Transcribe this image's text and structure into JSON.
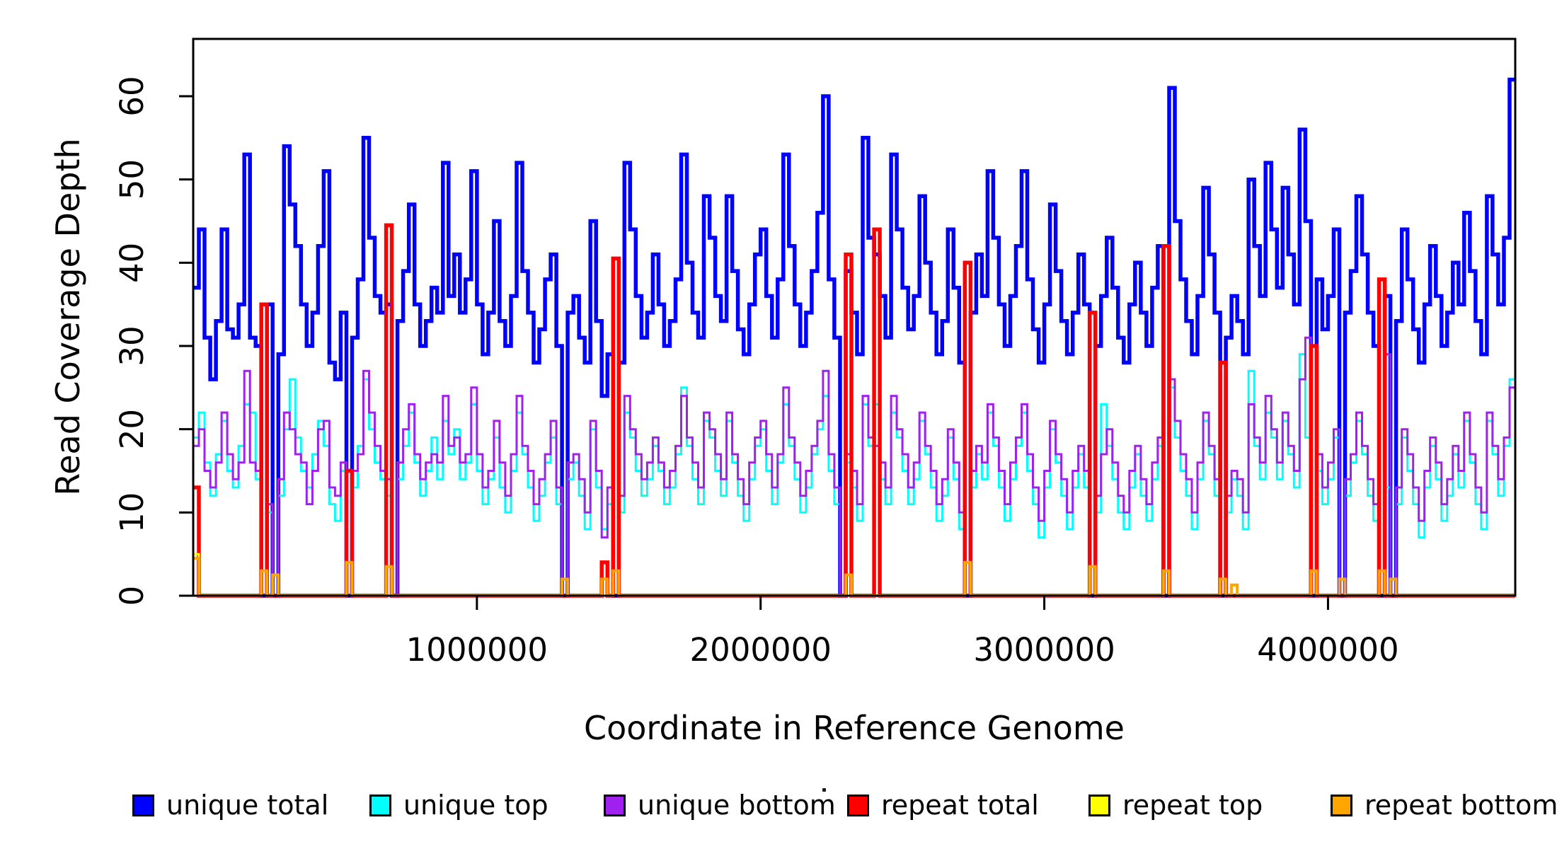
{
  "chart_data": {
    "type": "line",
    "subtype": "step-coverage",
    "title": "",
    "xlabel": "Coordinate in Reference Genome",
    "ylabel": "Read Coverage Depth",
    "xlim": [
      0,
      4660000
    ],
    "ylim": [
      0,
      67
    ],
    "x_ticks": [
      1000000,
      2000000,
      3000000,
      4000000
    ],
    "x_tick_labels": [
      "1000000",
      "2000000",
      "3000000",
      "4000000"
    ],
    "y_ticks": [
      0,
      10,
      20,
      30,
      40,
      50,
      60
    ],
    "y_tick_labels": [
      "0",
      "10",
      "20",
      "30",
      "40",
      "50",
      "60"
    ],
    "grid": false,
    "legend_position": "bottom",
    "window_bp": 20000,
    "series": [
      {
        "name": "unique total",
        "color": "#0000ff",
        "stroke_width": 5.5,
        "values": [
          37,
          44,
          31,
          26,
          33,
          44,
          32,
          31,
          35,
          53,
          31,
          30,
          0,
          35,
          0,
          29,
          54,
          47,
          42,
          35,
          30,
          34,
          42,
          51,
          28,
          26,
          34,
          0,
          31,
          38,
          55,
          43,
          36,
          34,
          35,
          0,
          33,
          39,
          47,
          35,
          30,
          33,
          37,
          34,
          52,
          36,
          41,
          34,
          38,
          51,
          35,
          29,
          34,
          45,
          33,
          30,
          36,
          52,
          39,
          34,
          28,
          32,
          38,
          41,
          30,
          0,
          34,
          36,
          31,
          28,
          45,
          33,
          24,
          29,
          0,
          28,
          52,
          44,
          36,
          31,
          34,
          41,
          35,
          30,
          33,
          38,
          53,
          40,
          34,
          31,
          48,
          43,
          36,
          33,
          48,
          39,
          32,
          29,
          35,
          41,
          44,
          36,
          31,
          38,
          53,
          42,
          35,
          30,
          34,
          39,
          46,
          60,
          38,
          31,
          0,
          39,
          34,
          29,
          55,
          43,
          41,
          36,
          31,
          53,
          44,
          37,
          32,
          36,
          48,
          40,
          34,
          29,
          33,
          44,
          37,
          28,
          0,
          34,
          41,
          36,
          51,
          43,
          35,
          30,
          36,
          42,
          51,
          38,
          32,
          28,
          35,
          47,
          39,
          33,
          29,
          34,
          41,
          35,
          0,
          30,
          36,
          43,
          37,
          31,
          28,
          35,
          40,
          34,
          30,
          37,
          42,
          0,
          61,
          45,
          38,
          33,
          29,
          36,
          49,
          41,
          34,
          0,
          31,
          36,
          33,
          29,
          50,
          42,
          36,
          52,
          44,
          37,
          49,
          41,
          35,
          56,
          45,
          0,
          38,
          32,
          36,
          44,
          0,
          34,
          39,
          48,
          41,
          34,
          30,
          0,
          36,
          0,
          33,
          44,
          38,
          32,
          28,
          35,
          42,
          36,
          30,
          34,
          40,
          35,
          46,
          39,
          33,
          29,
          48,
          41,
          35,
          43,
          62
        ]
      },
      {
        "name": "unique top",
        "color": "#00ffff",
        "stroke_width": 3,
        "values": [
          19,
          22,
          16,
          12,
          17,
          21,
          15,
          13,
          18,
          23,
          22,
          14,
          0,
          10,
          0,
          12,
          20,
          26,
          19,
          15,
          13,
          17,
          21,
          18,
          11,
          9,
          15,
          0,
          13,
          18,
          26,
          20,
          16,
          14,
          12,
          0,
          14,
          18,
          22,
          16,
          12,
          15,
          19,
          14,
          21,
          17,
          20,
          14,
          16,
          23,
          15,
          11,
          14,
          19,
          13,
          10,
          15,
          22,
          17,
          13,
          9,
          12,
          16,
          19,
          11,
          0,
          14,
          16,
          12,
          8,
          20,
          13,
          8,
          11,
          0,
          10,
          22,
          19,
          15,
          12,
          14,
          18,
          15,
          11,
          13,
          17,
          25,
          18,
          14,
          11,
          21,
          19,
          15,
          12,
          21,
          16,
          12,
          9,
          14,
          18,
          20,
          15,
          11,
          16,
          23,
          18,
          14,
          10,
          13,
          17,
          20,
          24,
          15,
          11,
          0,
          16,
          13,
          9,
          23,
          18,
          23,
          14,
          11,
          22,
          19,
          15,
          11,
          14,
          21,
          17,
          13,
          9,
          12,
          19,
          14,
          8,
          0,
          13,
          17,
          14,
          22,
          18,
          13,
          9,
          14,
          18,
          22,
          15,
          11,
          7,
          13,
          20,
          16,
          12,
          8,
          13,
          17,
          13,
          0,
          10,
          23,
          18,
          14,
          10,
          8,
          13,
          17,
          12,
          9,
          14,
          18,
          0,
          25,
          19,
          15,
          12,
          8,
          14,
          21,
          17,
          12,
          0,
          10,
          14,
          12,
          8,
          27,
          18,
          14,
          22,
          19,
          14,
          21,
          17,
          13,
          29,
          19,
          0,
          15,
          11,
          14,
          19,
          0,
          12,
          16,
          21,
          17,
          12,
          9,
          0,
          13,
          0,
          11,
          19,
          15,
          11,
          7,
          13,
          18,
          14,
          9,
          12,
          17,
          13,
          21,
          16,
          11,
          8,
          21,
          17,
          12,
          18,
          26
        ]
      },
      {
        "name": "unique bottom",
        "color": "#a020f0",
        "stroke_width": 3,
        "values": [
          18,
          20,
          15,
          13,
          16,
          22,
          17,
          14,
          16,
          27,
          16,
          15,
          0,
          11,
          0,
          14,
          22,
          20,
          17,
          16,
          11,
          15,
          20,
          21,
          13,
          12,
          16,
          0,
          15,
          17,
          27,
          22,
          18,
          15,
          14,
          0,
          16,
          20,
          23,
          17,
          14,
          16,
          17,
          16,
          24,
          18,
          19,
          16,
          17,
          25,
          17,
          13,
          15,
          21,
          16,
          12,
          17,
          24,
          18,
          15,
          11,
          14,
          17,
          21,
          13,
          0,
          16,
          17,
          14,
          10,
          21,
          15,
          7,
          13,
          0,
          12,
          24,
          20,
          17,
          14,
          16,
          19,
          16,
          13,
          15,
          18,
          24,
          19,
          16,
          13,
          22,
          20,
          17,
          14,
          22,
          17,
          14,
          11,
          16,
          19,
          21,
          17,
          13,
          17,
          25,
          19,
          16,
          12,
          15,
          18,
          21,
          27,
          17,
          13,
          0,
          17,
          15,
          11,
          24,
          19,
          18,
          16,
          13,
          24,
          20,
          17,
          13,
          16,
          22,
          18,
          15,
          11,
          14,
          20,
          16,
          10,
          0,
          15,
          18,
          16,
          23,
          19,
          15,
          11,
          16,
          19,
          23,
          17,
          13,
          9,
          15,
          21,
          17,
          14,
          10,
          15,
          18,
          15,
          0,
          12,
          17,
          20,
          16,
          12,
          10,
          15,
          18,
          14,
          11,
          16,
          19,
          0,
          26,
          21,
          17,
          14,
          10,
          16,
          22,
          18,
          14,
          0,
          12,
          15,
          14,
          10,
          23,
          19,
          16,
          24,
          20,
          16,
          22,
          18,
          15,
          26,
          31,
          0,
          17,
          13,
          16,
          20,
          0,
          14,
          17,
          22,
          18,
          14,
          11,
          0,
          29,
          0,
          13,
          20,
          17,
          13,
          9,
          15,
          19,
          16,
          11,
          14,
          18,
          15,
          22,
          17,
          13,
          10,
          22,
          18,
          14,
          19,
          25
        ]
      },
      {
        "name": "repeat total",
        "color": "#ff0000",
        "stroke_width": 5.5,
        "base": 0,
        "spikes": [
          [
            0,
            13
          ],
          [
            12,
            35
          ],
          [
            27,
            15
          ],
          [
            34,
            44.5
          ],
          [
            72,
            4
          ],
          [
            74,
            40.5
          ],
          [
            115,
            41
          ],
          [
            120,
            44
          ],
          [
            136,
            40
          ],
          [
            158,
            34
          ],
          [
            171,
            42
          ],
          [
            181,
            28
          ],
          [
            197,
            30
          ],
          [
            209,
            38
          ]
        ]
      },
      {
        "name": "repeat top",
        "color": "#ffff00",
        "stroke_width": 3,
        "base": 0,
        "spikes": [
          [
            0,
            5
          ],
          [
            183,
            1.2
          ]
        ]
      },
      {
        "name": "repeat bottom",
        "color": "#ffa500",
        "stroke_width": 4,
        "base": 0,
        "spikes": [
          [
            0,
            4.5
          ],
          [
            12,
            3
          ],
          [
            14,
            2.5
          ],
          [
            27,
            4
          ],
          [
            34,
            3.5
          ],
          [
            65,
            2
          ],
          [
            72,
            2
          ],
          [
            74,
            3
          ],
          [
            115,
            2.5
          ],
          [
            136,
            4
          ],
          [
            158,
            3.5
          ],
          [
            171,
            3
          ],
          [
            181,
            2
          ],
          [
            183,
            1.3
          ],
          [
            197,
            3
          ],
          [
            202,
            2
          ],
          [
            209,
            3
          ],
          [
            211,
            2
          ]
        ]
      }
    ]
  },
  "legend": {
    "items": [
      {
        "label": "unique total",
        "color": "#0000ff"
      },
      {
        "label": "unique top",
        "color": "#00ffff"
      },
      {
        "label": "unique bottom",
        "color": "#a020f0"
      },
      {
        "label": "repeat total",
        "color": "#ff0000"
      },
      {
        "label": "repeat top",
        "color": "#ffff00"
      },
      {
        "label": "repeat bottom",
        "color": "#ffa500"
      }
    ],
    "artifact_dot": "."
  }
}
